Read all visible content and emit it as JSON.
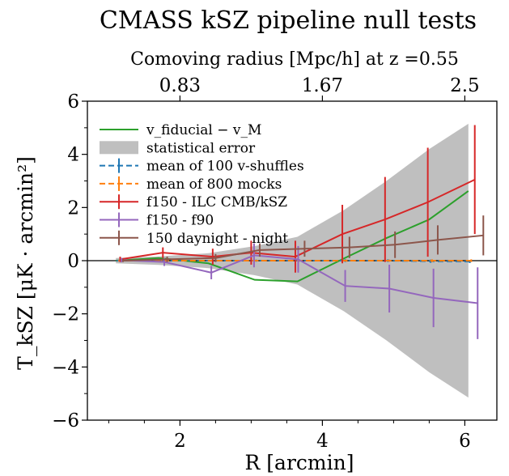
{
  "chart_data": {
    "type": "line",
    "title": "CMASS kSZ pipeline null tests",
    "top_axis": {
      "label": "Comoving radius [Mpc/h] at z =0.55",
      "ticks": [
        {
          "at_R": 2,
          "label": "0.83"
        },
        {
          "at_R": 4,
          "label": "1.67"
        },
        {
          "at_R": 6,
          "label": "2.5"
        }
      ]
    },
    "xlabel": "R [arcmin]",
    "ylabel": "T_kSZ [μK · arcmin²]",
    "xlim": [
      0.7,
      6.45
    ],
    "ylim": [
      -6,
      6
    ],
    "xticks": [
      2,
      4,
      6
    ],
    "yticks": [
      -6,
      -4,
      -2,
      0,
      2,
      4,
      6
    ],
    "legend": "upper-left",
    "grid": false,
    "series": [
      {
        "name": "v_fiducial − v_M",
        "kind": "line",
        "color": "#2ca02c",
        "x": [
          1.1,
          1.7,
          2.4,
          3.05,
          3.65,
          4.3,
          4.9,
          5.5,
          6.05
        ],
        "y": [
          0.0,
          0.1,
          -0.1,
          -0.72,
          -0.78,
          0.08,
          0.85,
          1.55,
          2.62
        ]
      },
      {
        "name": "statistical error",
        "kind": "band",
        "color": "#bfbfbf",
        "x": [
          1.1,
          1.7,
          2.4,
          3.05,
          3.65,
          4.3,
          4.9,
          5.5,
          6.05
        ],
        "upper": [
          0.1,
          0.16,
          0.28,
          0.55,
          0.9,
          1.9,
          3.0,
          4.2,
          5.15
        ],
        "lower": [
          -0.1,
          -0.16,
          -0.28,
          -0.55,
          -0.9,
          -1.9,
          -3.0,
          -4.2,
          -5.15
        ]
      },
      {
        "name": "mean of 100 v-shuffles",
        "kind": "errorbar",
        "color": "#1f77b4",
        "dashed": true,
        "x": [
          1.12,
          1.72,
          2.42,
          3.07,
          3.67,
          4.32,
          4.92,
          5.52,
          6.07
        ],
        "y": [
          0.0,
          0.0,
          0.0,
          0.0,
          0.0,
          0.0,
          0.0,
          -0.02,
          -0.03
        ],
        "err": [
          0.03,
          0.03,
          0.03,
          0.04,
          0.04,
          0.05,
          0.05,
          0.06,
          0.06
        ]
      },
      {
        "name": "mean of 800 mocks",
        "kind": "errorbar",
        "color": "#ff7f0e",
        "dashed": true,
        "x": [
          1.14,
          1.74,
          2.44,
          3.09,
          3.69,
          4.34,
          4.94,
          5.54,
          6.09
        ],
        "y": [
          0.0,
          0.0,
          0.0,
          0.0,
          0.0,
          0.0,
          0.0,
          0.0,
          0.0
        ],
        "err": [
          0.02,
          0.02,
          0.02,
          0.03,
          0.03,
          0.04,
          0.04,
          0.05,
          0.05
        ]
      },
      {
        "name": "f150 - ILC CMB/kSZ",
        "kind": "errorbar",
        "color": "#d62728",
        "x": [
          1.16,
          1.76,
          2.46,
          3.0,
          3.62,
          4.28,
          4.88,
          5.48,
          6.14
        ],
        "y": [
          0.05,
          0.3,
          0.15,
          0.3,
          0.15,
          1.0,
          1.55,
          2.2,
          3.05
        ],
        "err": [
          0.1,
          0.2,
          0.3,
          0.45,
          0.6,
          1.1,
          1.6,
          2.05,
          2.05
        ]
      },
      {
        "name": "f150 - f90",
        "kind": "errorbar",
        "color": "#9467bd",
        "x": [
          1.18,
          1.78,
          2.44,
          3.04,
          3.66,
          4.32,
          4.94,
          5.56,
          6.18
        ],
        "y": [
          0.02,
          -0.05,
          -0.45,
          0.2,
          0.05,
          -0.95,
          -1.05,
          -1.4,
          -1.6
        ],
        "err": [
          0.08,
          0.15,
          0.25,
          0.45,
          0.5,
          0.6,
          0.9,
          1.1,
          1.35
        ]
      },
      {
        "name": "150 daynight - night",
        "kind": "errorbar",
        "color": "#8c564b",
        "x": [
          1.2,
          1.82,
          2.5,
          3.12,
          3.75,
          4.38,
          5.02,
          5.62,
          6.26
        ],
        "y": [
          0.0,
          0.05,
          0.1,
          0.4,
          0.45,
          0.5,
          0.6,
          0.78,
          0.95
        ],
        "err": [
          0.05,
          0.1,
          0.15,
          0.25,
          0.3,
          0.4,
          0.5,
          0.55,
          0.75
        ]
      }
    ]
  }
}
